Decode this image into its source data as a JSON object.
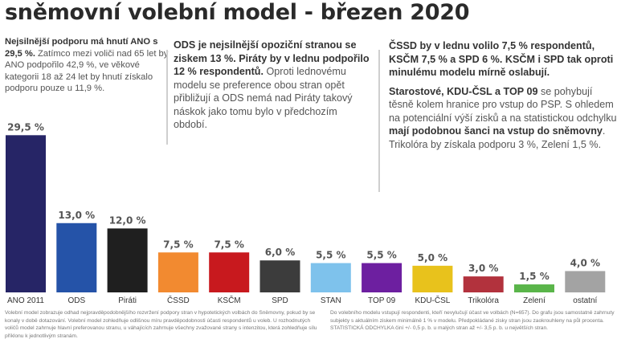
{
  "title": "sněmovní volební model - březen 2020",
  "text_left": {
    "bold": "Nejsilnější podporu má hnutí ANO s 29,5 %.",
    "rest": " Zatímco mezi voliči nad 65 let by ANO podpořilo 42,9 %, ve věkové kategorii 18 až 24 let by hnutí získalo podporu pouze u 11,9 %."
  },
  "text_mid": {
    "bold": "ODS je nejsilnější opoziční stranou se ziskem 13 %. Piráty by v lednu podpořilo 12 % respondentů.",
    "rest": " Oproti lednovému modelu se preference obou stran opět přibližují a ODS nemá nad Piráty takový náskok jako tomu bylo v předchozím období."
  },
  "text_right": {
    "p1_bold": "ČSSD by v lednu volilo 7,5 % respondentů, KSČM 7,5 % a SPD 6 %. KSČM i SPD tak oproti minulému modelu mírně oslabují.",
    "p2_bold": "Starostové, KDU-ČSL a TOP 09",
    "p2_a": " se pohybují těsně kolem hranice pro vstup do PSP. S ohledem na potenciální výší zisků a na statistickou odchylku ",
    "p2_bold2": "mají podobnou šanci na vstup do sněmovny",
    "p2_b": ". Trikolóra by získala podporu 3 %, Zelení 1,5 %."
  },
  "chart_data": {
    "type": "bar",
    "categories": [
      "ANO 2011",
      "ODS",
      "Piráti",
      "ČSSD",
      "KSČM",
      "SPD",
      "STAN",
      "TOP 09",
      "KDU-ČSL",
      "Trikolóra",
      "Zelení",
      "ostatní"
    ],
    "values": [
      29.5,
      13.0,
      12.0,
      7.5,
      7.5,
      6.0,
      5.5,
      5.5,
      5.0,
      3.0,
      1.5,
      4.0
    ],
    "labels": [
      "29,5 %",
      "13,0 %",
      "12,0 %",
      "7,5 %",
      "7,5 %",
      "6,0 %",
      "5,5 %",
      "5,5 %",
      "5,0 %",
      "3,0 %",
      "1,5 %",
      "4,0 %"
    ],
    "colors": [
      "#262566",
      "#2553a8",
      "#1f1f1f",
      "#f28a30",
      "#c8191e",
      "#3c3c3c",
      "#7ec2ec",
      "#6d1fa0",
      "#e8c21c",
      "#b2323d",
      "#5ab54a",
      "#a3a3a3"
    ],
    "title": "",
    "xlabel": "",
    "ylabel": "",
    "ylim": [
      0,
      30
    ],
    "grid": false,
    "legend": "none"
  },
  "footnote_left": "Volební model zobrazuje odhad nejpravděpodobnějšího rozvržení podpory stran v hypotetických volbách do Sněmovny, pokud by se konaly v době dotazování. Volební model zohledňuje odlišnou míru pravděpodobnosti účasti respondentů u voleb. U rozhodnutých voličů model zahrnuje hlavní preferovanou stranu, u váhajících zahrnuje všechny zvažované strany s intenzitou, která zohledňuje sílu příklonu k jednotlivým stranám.",
  "footnote_right": "Do volebního modelu vstupují respondenti, kteří nevylučují účast ve volbách (N=657). Do grafu jsou samostatně zahrnuty subjekty s aktuálním ziskem minimálně 1 % v modelu. Předpokládané zisky stran jsou zaokrouhleny na půl procenta. STATISTICKÁ ODCHYLKA činí +/- 0,5 p. b. u malých stran až +/- 3,5 p. b. u největších stran."
}
